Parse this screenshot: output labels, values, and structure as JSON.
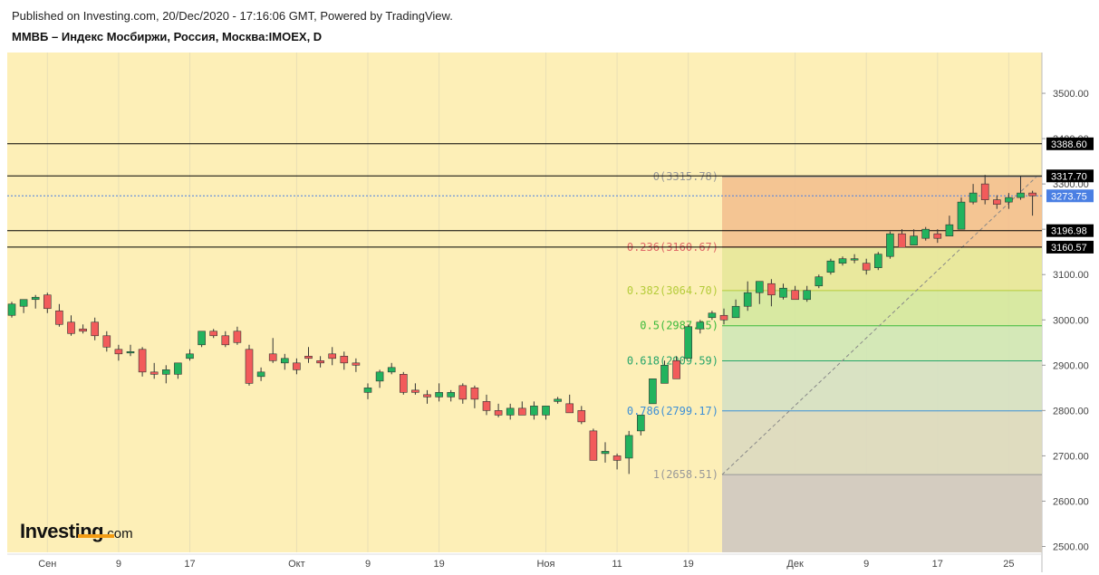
{
  "header": {
    "published": "Published on Investing.com, 20/Dec/2020 - 17:16:06 GMT, Powered by TradingView.",
    "title": "ММВБ – Индекс Мосбиржи, Россия, Москва:IMOEX, D"
  },
  "logo": {
    "brand": "Investing",
    "suffix": ".com"
  },
  "colors": {
    "background": "#fdefb7",
    "up": "#22b35e",
    "down": "#f25b5b",
    "badge": "#000000",
    "current_badge": "#4a7fe3"
  },
  "chart_data": {
    "type": "candlestick",
    "y_axis": {
      "ticks": [
        2500,
        2600,
        2700,
        2800,
        2900,
        3000,
        3100,
        3200,
        3300,
        3400,
        3500
      ],
      "tick_labels": [
        "2500.00",
        "2600.00",
        "2700.00",
        "2800.00",
        "2900.00",
        "3000.00",
        "3100.00",
        "3200.00",
        "3300.00",
        "3400.00",
        "3500.00"
      ],
      "ylim": [
        2487,
        3590
      ]
    },
    "x_axis": {
      "tick_labels": [
        "Сен",
        "9",
        "17",
        "Окт",
        "9",
        "19",
        "Ноя",
        "11",
        "19",
        "Дек",
        "9",
        "17",
        "25"
      ],
      "tick_index": [
        3,
        9,
        15,
        24,
        30,
        36,
        45,
        51,
        57,
        66,
        72,
        78,
        84
      ]
    },
    "horizontal_levels": [
      {
        "value": 3388.6,
        "label": "3388.60",
        "style": "solid"
      },
      {
        "value": 3317.7,
        "label": "3317.70",
        "style": "solid"
      },
      {
        "value": 3273.75,
        "label": "3273.75",
        "style": "dotted-current"
      },
      {
        "value": 3196.98,
        "label": "3196.98",
        "style": "solid"
      },
      {
        "value": 3160.57,
        "label": "3160.57",
        "style": "solid"
      }
    ],
    "fibonacci": {
      "start_index": 60,
      "high": 3315.78,
      "low": 2658.51,
      "levels": [
        {
          "ratio": "0",
          "value": 3315.78,
          "label": "0(3315.78)",
          "color": "#999999"
        },
        {
          "ratio": "0.236",
          "value": 3160.67,
          "label": "0.236(3160.67)",
          "color": "#e06666"
        },
        {
          "ratio": "0.382",
          "value": 3064.7,
          "label": "0.382(3064.70)",
          "color": "#b5cc3a"
        },
        {
          "ratio": "0.5",
          "value": 2987.15,
          "label": "0.5(2987.15)",
          "color": "#3cba3c"
        },
        {
          "ratio": "0.618",
          "value": 2909.59,
          "label": "0.618(2909.59)",
          "color": "#27a56a"
        },
        {
          "ratio": "0.786",
          "value": 2799.17,
          "label": "0.786(2799.17)",
          "color": "#3d8fd6"
        },
        {
          "ratio": "1",
          "value": 2658.51,
          "label": "1(2658.51)",
          "color": "#999999"
        }
      ]
    },
    "candles": [
      [
        3010,
        3040,
        3005,
        3035
      ],
      [
        3030,
        3045,
        3015,
        3045
      ],
      [
        3045,
        3055,
        3025,
        3050
      ],
      [
        3055,
        3060,
        3015,
        3025
      ],
      [
        3020,
        3035,
        2985,
        2990
      ],
      [
        2995,
        3010,
        2965,
        2970
      ],
      [
        2980,
        2990,
        2970,
        2975
      ],
      [
        2995,
        3005,
        2955,
        2965
      ],
      [
        2965,
        2975,
        2930,
        2940
      ],
      [
        2935,
        2945,
        2910,
        2925
      ],
      [
        2930,
        2945,
        2920,
        2930
      ],
      [
        2935,
        2940,
        2875,
        2885
      ],
      [
        2885,
        2905,
        2870,
        2880
      ],
      [
        2880,
        2900,
        2860,
        2890
      ],
      [
        2880,
        2905,
        2870,
        2905
      ],
      [
        2915,
        2935,
        2910,
        2925
      ],
      [
        2945,
        2975,
        2940,
        2975
      ],
      [
        2975,
        2980,
        2960,
        2965
      ],
      [
        2965,
        2975,
        2940,
        2945
      ],
      [
        2975,
        2985,
        2945,
        2950
      ],
      [
        2935,
        2945,
        2855,
        2860
      ],
      [
        2875,
        2895,
        2865,
        2885
      ],
      [
        2925,
        2960,
        2905,
        2910
      ],
      [
        2905,
        2925,
        2890,
        2915
      ],
      [
        2905,
        2915,
        2880,
        2890
      ],
      [
        2920,
        2940,
        2905,
        2915
      ],
      [
        2910,
        2920,
        2895,
        2905
      ],
      [
        2925,
        2940,
        2900,
        2915
      ],
      [
        2920,
        2930,
        2890,
        2905
      ],
      [
        2905,
        2915,
        2885,
        2900
      ],
      [
        2840,
        2860,
        2825,
        2850
      ],
      [
        2865,
        2890,
        2850,
        2885
      ],
      [
        2885,
        2905,
        2880,
        2895
      ],
      [
        2880,
        2885,
        2835,
        2840
      ],
      [
        2845,
        2860,
        2835,
        2840
      ],
      [
        2835,
        2845,
        2815,
        2830
      ],
      [
        2830,
        2860,
        2820,
        2840
      ],
      [
        2830,
        2845,
        2820,
        2840
      ],
      [
        2855,
        2860,
        2815,
        2825
      ],
      [
        2850,
        2855,
        2805,
        2825
      ],
      [
        2820,
        2835,
        2790,
        2800
      ],
      [
        2800,
        2815,
        2785,
        2790
      ],
      [
        2790,
        2815,
        2780,
        2805
      ],
      [
        2805,
        2820,
        2795,
        2790
      ],
      [
        2790,
        2820,
        2780,
        2810
      ],
      [
        2790,
        2810,
        2780,
        2810
      ],
      [
        2820,
        2830,
        2815,
        2825
      ],
      [
        2815,
        2835,
        2800,
        2795
      ],
      [
        2800,
        2810,
        2770,
        2775
      ],
      [
        2755,
        2760,
        2690,
        2690
      ],
      [
        2705,
        2730,
        2685,
        2710
      ],
      [
        2700,
        2705,
        2670,
        2690
      ],
      [
        2695,
        2755,
        2660,
        2745
      ],
      [
        2755,
        2790,
        2745,
        2790
      ],
      [
        2815,
        2870,
        2815,
        2870
      ],
      [
        2860,
        2910,
        2860,
        2900
      ],
      [
        2910,
        2920,
        2875,
        2870
      ],
      [
        2915,
        2990,
        2915,
        2985
      ],
      [
        2980,
        3000,
        2970,
        2995
      ],
      [
        3005,
        3020,
        3000,
        3015
      ],
      [
        3010,
        3025,
        2990,
        3000
      ],
      [
        3005,
        3045,
        3005,
        3030
      ],
      [
        3030,
        3085,
        3020,
        3060
      ],
      [
        3060,
        3085,
        3035,
        3085
      ],
      [
        3080,
        3090,
        3030,
        3055
      ],
      [
        3050,
        3080,
        3045,
        3070
      ],
      [
        3065,
        3075,
        3045,
        3045
      ],
      [
        3045,
        3075,
        3040,
        3065
      ],
      [
        3075,
        3100,
        3070,
        3095
      ],
      [
        3105,
        3135,
        3100,
        3130
      ],
      [
        3125,
        3140,
        3120,
        3135
      ],
      [
        3135,
        3145,
        3125,
        3135
      ],
      [
        3125,
        3135,
        3100,
        3110
      ],
      [
        3115,
        3150,
        3110,
        3145
      ],
      [
        3140,
        3195,
        3135,
        3190
      ],
      [
        3190,
        3200,
        3160,
        3160
      ],
      [
        3165,
        3200,
        3165,
        3185
      ],
      [
        3180,
        3205,
        3175,
        3200
      ],
      [
        3190,
        3200,
        3170,
        3180
      ],
      [
        3185,
        3230,
        3185,
        3210
      ],
      [
        3200,
        3270,
        3200,
        3260
      ],
      [
        3260,
        3300,
        3255,
        3280
      ],
      [
        3300,
        3320,
        3255,
        3265
      ],
      [
        3265,
        3275,
        3245,
        3255
      ],
      [
        3260,
        3280,
        3245,
        3270
      ],
      [
        3270,
        3318,
        3265,
        3280
      ],
      [
        3280,
        3285,
        3230,
        3274
      ]
    ]
  }
}
